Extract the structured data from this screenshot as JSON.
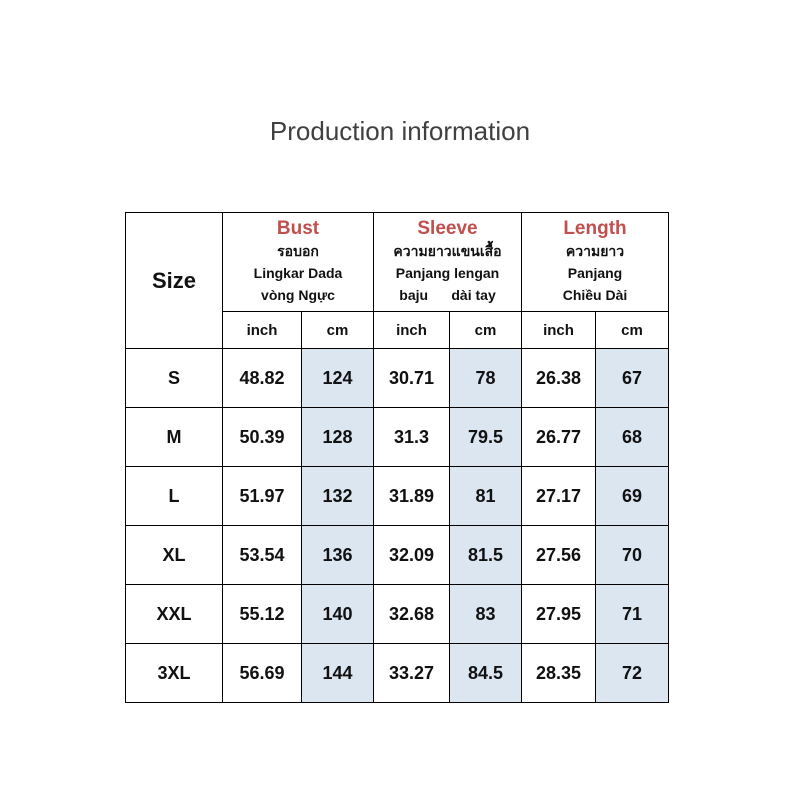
{
  "title": "Production information",
  "table": {
    "size_header": "Size",
    "groups": [
      {
        "name": "Bust",
        "lines": [
          "รอบอก",
          "Lingkar Dada",
          "vòng Ngực"
        ]
      },
      {
        "name": "Sleeve",
        "lines": [
          "ความยาวแขนเสื้อ",
          "Panjang lengan",
          "baju      dài tay"
        ]
      },
      {
        "name": "Length",
        "lines": [
          "ความยาว",
          "Panjang",
          "Chiều Dài"
        ]
      }
    ],
    "units": [
      "inch",
      "cm",
      "inch",
      "cm",
      "inch",
      "cm"
    ],
    "rows": [
      [
        "S",
        "48.82",
        "124",
        "30.71",
        "78",
        "26.38",
        "67"
      ],
      [
        "M",
        "50.39",
        "128",
        "31.3",
        "79.5",
        "26.77",
        "68"
      ],
      [
        "L",
        "51.97",
        "132",
        "31.89",
        "81",
        "27.17",
        "69"
      ],
      [
        "XL",
        "53.54",
        "136",
        "32.09",
        "81.5",
        "27.56",
        "70"
      ],
      [
        "XXL",
        "55.12",
        "140",
        "32.68",
        "83",
        "27.95",
        "71"
      ],
      [
        "3XL",
        "56.69",
        "144",
        "33.27",
        "84.5",
        "28.35",
        "72"
      ]
    ]
  }
}
